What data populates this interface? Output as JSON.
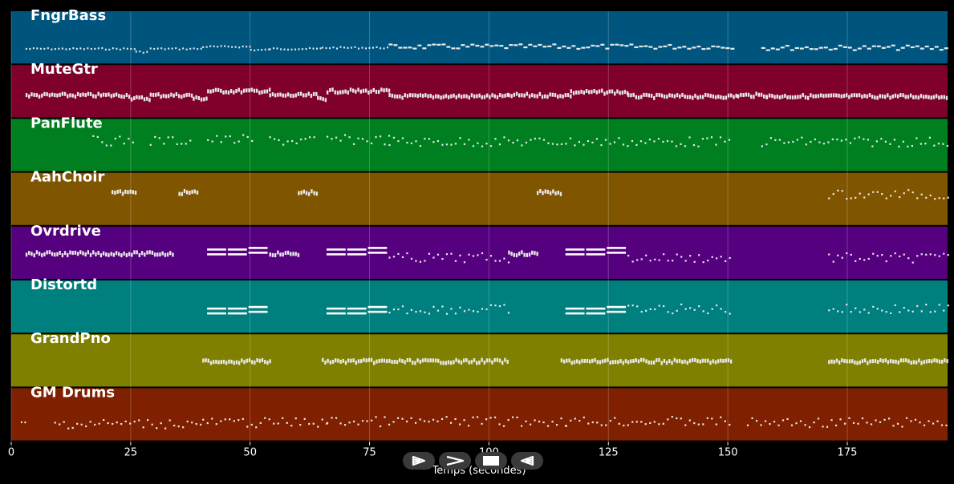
{
  "chart_data": {
    "type": "piano-roll",
    "xlabel": "Temps (secondes)",
    "xlim": [
      0,
      196
    ],
    "xticks": [
      0,
      25,
      50,
      75,
      100,
      125,
      150,
      175
    ],
    "tracks": [
      {
        "name": "FngrBass",
        "color": "#00557f",
        "segments": [
          [
            3,
            26,
            "dot",
            0.72
          ],
          [
            26,
            29,
            "dot",
            0.78
          ],
          [
            29,
            40,
            "dot",
            0.72
          ],
          [
            40,
            50,
            "dot",
            0.68
          ],
          [
            50,
            54,
            "dot",
            0.74
          ],
          [
            54,
            65,
            "dot",
            0.72
          ],
          [
            65,
            79,
            "dot",
            0.7
          ],
          [
            79,
            151,
            "dash",
            0.68
          ],
          [
            157,
            196,
            "dash",
            0.7
          ]
        ]
      },
      {
        "name": "MuteGtr",
        "color": "#7f002a",
        "segments": [
          [
            3,
            25,
            "dense",
            0.58
          ],
          [
            25,
            29,
            "dense",
            0.64
          ],
          [
            29,
            38,
            "dense",
            0.58
          ],
          [
            38,
            41,
            "dense",
            0.64
          ],
          [
            41,
            54,
            "dense",
            0.5
          ],
          [
            54,
            64,
            "dense",
            0.58
          ],
          [
            64,
            66,
            "dense",
            0.64
          ],
          [
            66,
            79,
            "dense",
            0.5
          ],
          [
            79,
            104,
            "dense",
            0.6
          ],
          [
            104,
            117,
            "dense",
            0.58
          ],
          [
            117,
            129,
            "dense",
            0.52
          ],
          [
            129,
            152,
            "dense",
            0.6
          ],
          [
            152,
            158,
            "dense",
            0.58
          ],
          [
            158,
            196,
            "dense",
            0.6
          ]
        ]
      },
      {
        "name": "PanFlute",
        "color": "#007f20",
        "segments": [
          [
            17,
            26,
            "sparse",
            0.42
          ],
          [
            29,
            38,
            "sparse",
            0.42
          ],
          [
            41,
            51,
            "sparse",
            0.4
          ],
          [
            54,
            64,
            "sparse",
            0.42
          ],
          [
            66,
            79,
            "sparse",
            0.4
          ],
          [
            79,
            151,
            "sparse",
            0.44
          ],
          [
            157,
            196,
            "sparse",
            0.44
          ]
        ]
      },
      {
        "name": "AahChoir",
        "color": "#7f5500",
        "segments": [
          [
            21,
            26,
            "dense",
            0.38
          ],
          [
            35,
            39,
            "dense",
            0.38
          ],
          [
            60,
            64,
            "dense",
            0.38
          ],
          [
            110,
            115,
            "dense",
            0.38
          ],
          [
            171,
            196,
            "sparse",
            0.42
          ]
        ]
      },
      {
        "name": "Ovrdrive",
        "color": "#55007f",
        "segments": [
          [
            3,
            34,
            "dense",
            0.52
          ],
          [
            41,
            54,
            "long",
            0.48
          ],
          [
            54,
            60,
            "dense",
            0.52
          ],
          [
            66,
            79,
            "long",
            0.48
          ],
          [
            79,
            104,
            "sparse",
            0.6
          ],
          [
            104,
            110,
            "dense",
            0.52
          ],
          [
            116,
            129,
            "long",
            0.48
          ],
          [
            129,
            151,
            "sparse",
            0.6
          ],
          [
            171,
            196,
            "sparse",
            0.6
          ]
        ]
      },
      {
        "name": "Distortd",
        "color": "#007f7f",
        "segments": [
          [
            41,
            54,
            "long",
            0.58
          ],
          [
            66,
            79,
            "long",
            0.58
          ],
          [
            79,
            104,
            "sparse",
            0.55
          ],
          [
            116,
            129,
            "long",
            0.58
          ],
          [
            129,
            151,
            "sparse",
            0.55
          ],
          [
            171,
            196,
            "sparse",
            0.55
          ]
        ]
      },
      {
        "name": "GrandPno",
        "color": "#7f7f00",
        "segments": [
          [
            40,
            54,
            "dense",
            0.52
          ],
          [
            65,
            104,
            "dense",
            0.52
          ],
          [
            115,
            151,
            "dense",
            0.52
          ],
          [
            171,
            196,
            "dense",
            0.52
          ]
        ]
      },
      {
        "name": "GM Drums",
        "color": "#7f2000",
        "segments": [
          [
            2,
            3,
            "dot",
            0.66
          ],
          [
            9,
            40,
            "sparse",
            0.68
          ],
          [
            40,
            66,
            "sparse",
            0.66
          ],
          [
            66,
            116,
            "sparse",
            0.64
          ],
          [
            116,
            151,
            "sparse",
            0.64
          ],
          [
            154,
            196,
            "sparse",
            0.66
          ]
        ]
      }
    ]
  },
  "player": {
    "buttons": [
      {
        "name": "play-forward-button",
        "icon": "play-outline-icon"
      },
      {
        "name": "next-button",
        "icon": "chevron-right-icon"
      },
      {
        "name": "stop-button",
        "icon": "stop-icon"
      },
      {
        "name": "play-backward-button",
        "icon": "play-reverse-icon"
      }
    ]
  }
}
